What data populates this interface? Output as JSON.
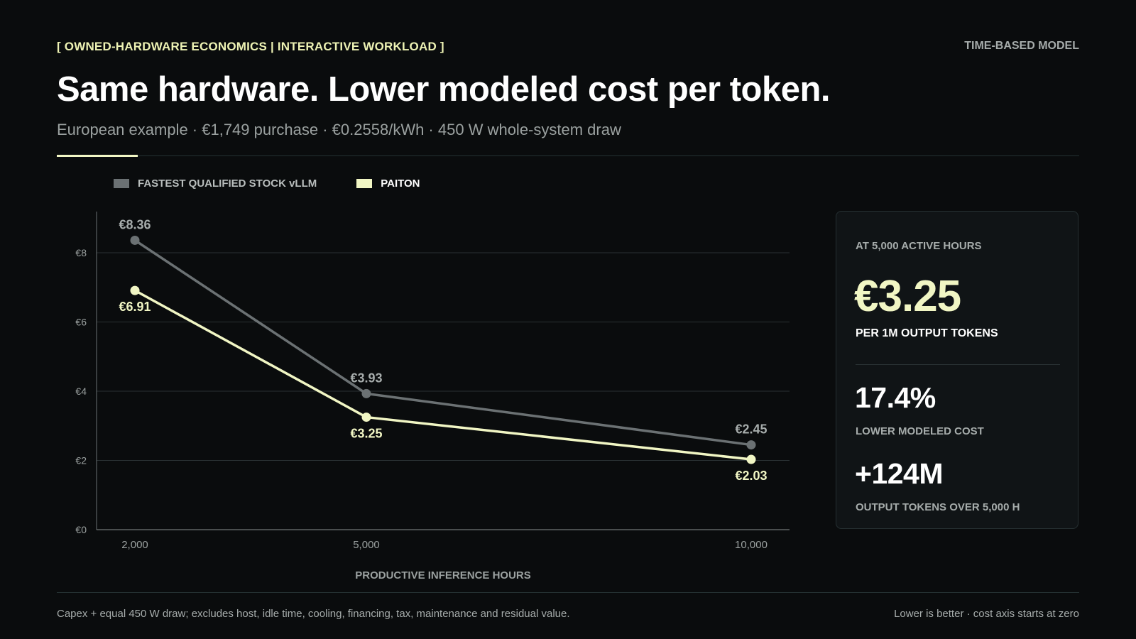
{
  "header": {
    "eyebrow": "[ OWNED-HARDWARE ECONOMICS | INTERACTIVE WORKLOAD ]",
    "model_tag": "TIME-BASED MODEL",
    "title": "Same hardware. Lower modeled cost per token.",
    "subtitle": "European example · €1,749 purchase · €0.2558/kWh · 450 W whole-system draw"
  },
  "colors": {
    "stock": "#6b7173",
    "paiton": "#f1f6c4",
    "accent": "#eef3b4"
  },
  "chart_data": {
    "type": "line",
    "title": "",
    "xlabel": "PRODUCTIVE INFERENCE HOURS",
    "ylabel": "",
    "categories": [
      "2,000",
      "5,000",
      "10,000"
    ],
    "x": [
      2000,
      5000,
      10000
    ],
    "ylim": [
      0,
      8
    ],
    "yticks": [
      0,
      2,
      4,
      6,
      8
    ],
    "ytick_labels": [
      "€0",
      "€2",
      "€4",
      "€6",
      "€8"
    ],
    "grid": true,
    "legend_position": "top-left",
    "series": [
      {
        "name": "FASTEST QUALIFIED STOCK vLLM",
        "values": [
          8.36,
          3.93,
          2.45
        ],
        "labels": [
          "€8.36",
          "€3.93",
          "€2.45"
        ],
        "color": "#6b7173"
      },
      {
        "name": "PAITON",
        "values": [
          6.91,
          3.25,
          2.03
        ],
        "labels": [
          "€6.91",
          "€3.25",
          "€2.03"
        ],
        "color": "#f1f6c4"
      }
    ]
  },
  "kpi": {
    "eyebrow": "AT 5,000 ACTIVE HOURS",
    "main_value": "€3.25",
    "main_unit": "PER 1M OUTPUT TOKENS",
    "stat1_value": "17.4%",
    "stat1_label": "LOWER MODELED COST",
    "stat2_value": "+124M",
    "stat2_label": "OUTPUT TOKENS OVER 5,000 H"
  },
  "footer": {
    "note": "Capex + equal 450 W draw; excludes host, idle time, cooling, financing, tax, maintenance and residual value.",
    "hint": "Lower is better · cost axis starts at zero"
  }
}
